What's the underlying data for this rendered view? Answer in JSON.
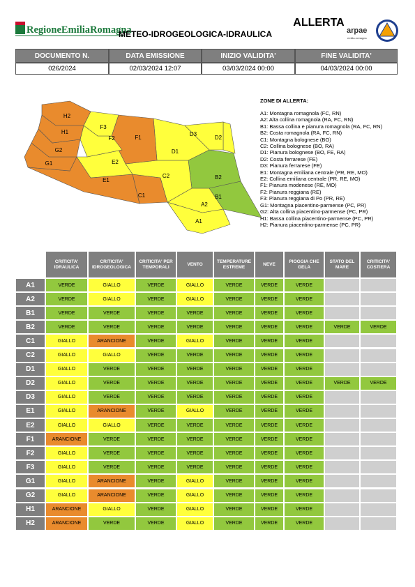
{
  "header": {
    "logo": "RegioneEmiliaRomagna",
    "title": "ALLERTA",
    "subtitle": "METEO-IDROGEOLOGICA-IDRAULICA",
    "agency": "arpae",
    "agency_region": "emilia-romagna"
  },
  "document": {
    "headers": [
      "DOCUMENTO N.",
      "DATA EMISSIONE",
      "INIZIO VALIDITA'",
      "FINE VALIDITA'"
    ],
    "values": [
      "026/2024",
      "02/03/2024 12:07",
      "03/03/2024 00:00",
      "04/03/2024 00:00"
    ]
  },
  "zones": {
    "title": "ZONE DI ALLERTA:",
    "items": [
      "A1: Montagna romagnola (FC, RN)",
      "A2: Alta collina romagnola (RA, FC, RN)",
      "B1: Bassa collina e pianura romagnola (RA, FC, RN)",
      "B2: Costa romagnola (RA, FC, RN)",
      "C1: Montagna bolognese (BO)",
      "C2: Collina bolognese (BO, RA)",
      "D1: Pianura bolognese (BO, FE, RA)",
      "D2: Costa ferrarese (FE)",
      "D3: Pianura ferrarese (FE)",
      "E1: Montagna emiliana centrale (PR, RE, MO)",
      "E2: Collina emiliana centrale (PR, RE, MO)",
      "F1: Pianura modenese (RE, MO)",
      "F2: Pianura reggiana (RE)",
      "F3: Pianura reggiana di Po (PR, RE)",
      "G1: Montagna piacentino-parmense (PC, PR)",
      "G2: Alta collina piacentino-parmense (PC, PR)",
      "H1: Bassa collina piacentino-parmense (PC, PR)",
      "H2: Pianura piacentino-parmense (PC, PR)"
    ]
  },
  "level_colors": {
    "VERDE": "#92c83e",
    "GIALLO": "#ffff3c",
    "ARANCIONE": "#e98b2d"
  },
  "table": {
    "headers": [
      "CRITICITA' IDRAULICA",
      "CRITICITA' IDROGEOLOGICA",
      "CRITICITA' PER TEMPORALI",
      "VENTO",
      "TEMPERATURE ESTREME",
      "NEVE",
      "PIOGGIA CHE GELA",
      "STATO DEL MARE",
      "CRITICITA' COSTIERA"
    ],
    "rows": [
      {
        "zone": "A1",
        "values": [
          "VERDE",
          "GIALLO",
          "VERDE",
          "GIALLO",
          "VERDE",
          "VERDE",
          "VERDE",
          null,
          null
        ]
      },
      {
        "zone": "A2",
        "values": [
          "VERDE",
          "GIALLO",
          "VERDE",
          "GIALLO",
          "VERDE",
          "VERDE",
          "VERDE",
          null,
          null
        ]
      },
      {
        "zone": "B1",
        "values": [
          "VERDE",
          "VERDE",
          "VERDE",
          "VERDE",
          "VERDE",
          "VERDE",
          "VERDE",
          null,
          null
        ]
      },
      {
        "zone": "B2",
        "values": [
          "VERDE",
          "VERDE",
          "VERDE",
          "VERDE",
          "VERDE",
          "VERDE",
          "VERDE",
          "VERDE",
          "VERDE"
        ]
      },
      {
        "zone": "C1",
        "values": [
          "GIALLO",
          "ARANCIONE",
          "VERDE",
          "GIALLO",
          "VERDE",
          "VERDE",
          "VERDE",
          null,
          null
        ]
      },
      {
        "zone": "C2",
        "values": [
          "GIALLO",
          "GIALLO",
          "VERDE",
          "VERDE",
          "VERDE",
          "VERDE",
          "VERDE",
          null,
          null
        ]
      },
      {
        "zone": "D1",
        "values": [
          "GIALLO",
          "VERDE",
          "VERDE",
          "VERDE",
          "VERDE",
          "VERDE",
          "VERDE",
          null,
          null
        ]
      },
      {
        "zone": "D2",
        "values": [
          "GIALLO",
          "VERDE",
          "VERDE",
          "VERDE",
          "VERDE",
          "VERDE",
          "VERDE",
          "VERDE",
          "VERDE"
        ]
      },
      {
        "zone": "D3",
        "values": [
          "GIALLO",
          "VERDE",
          "VERDE",
          "VERDE",
          "VERDE",
          "VERDE",
          "VERDE",
          null,
          null
        ]
      },
      {
        "zone": "E1",
        "values": [
          "GIALLO",
          "ARANCIONE",
          "VERDE",
          "GIALLO",
          "VERDE",
          "VERDE",
          "VERDE",
          null,
          null
        ]
      },
      {
        "zone": "E2",
        "values": [
          "GIALLO",
          "GIALLO",
          "VERDE",
          "VERDE",
          "VERDE",
          "VERDE",
          "VERDE",
          null,
          null
        ]
      },
      {
        "zone": "F1",
        "values": [
          "ARANCIONE",
          "VERDE",
          "VERDE",
          "VERDE",
          "VERDE",
          "VERDE",
          "VERDE",
          null,
          null
        ]
      },
      {
        "zone": "F2",
        "values": [
          "GIALLO",
          "VERDE",
          "VERDE",
          "VERDE",
          "VERDE",
          "VERDE",
          "VERDE",
          null,
          null
        ]
      },
      {
        "zone": "F3",
        "values": [
          "GIALLO",
          "VERDE",
          "VERDE",
          "VERDE",
          "VERDE",
          "VERDE",
          "VERDE",
          null,
          null
        ]
      },
      {
        "zone": "G1",
        "values": [
          "GIALLO",
          "ARANCIONE",
          "VERDE",
          "GIALLO",
          "VERDE",
          "VERDE",
          "VERDE",
          null,
          null
        ]
      },
      {
        "zone": "G2",
        "values": [
          "GIALLO",
          "ARANCIONE",
          "VERDE",
          "GIALLO",
          "VERDE",
          "VERDE",
          "VERDE",
          null,
          null
        ]
      },
      {
        "zone": "H1",
        "values": [
          "ARANCIONE",
          "GIALLO",
          "VERDE",
          "GIALLO",
          "VERDE",
          "VERDE",
          "VERDE",
          null,
          null
        ]
      },
      {
        "zone": "H2",
        "values": [
          "ARANCIONE",
          "VERDE",
          "VERDE",
          "GIALLO",
          "VERDE",
          "VERDE",
          "VERDE",
          null,
          null
        ]
      }
    ]
  }
}
